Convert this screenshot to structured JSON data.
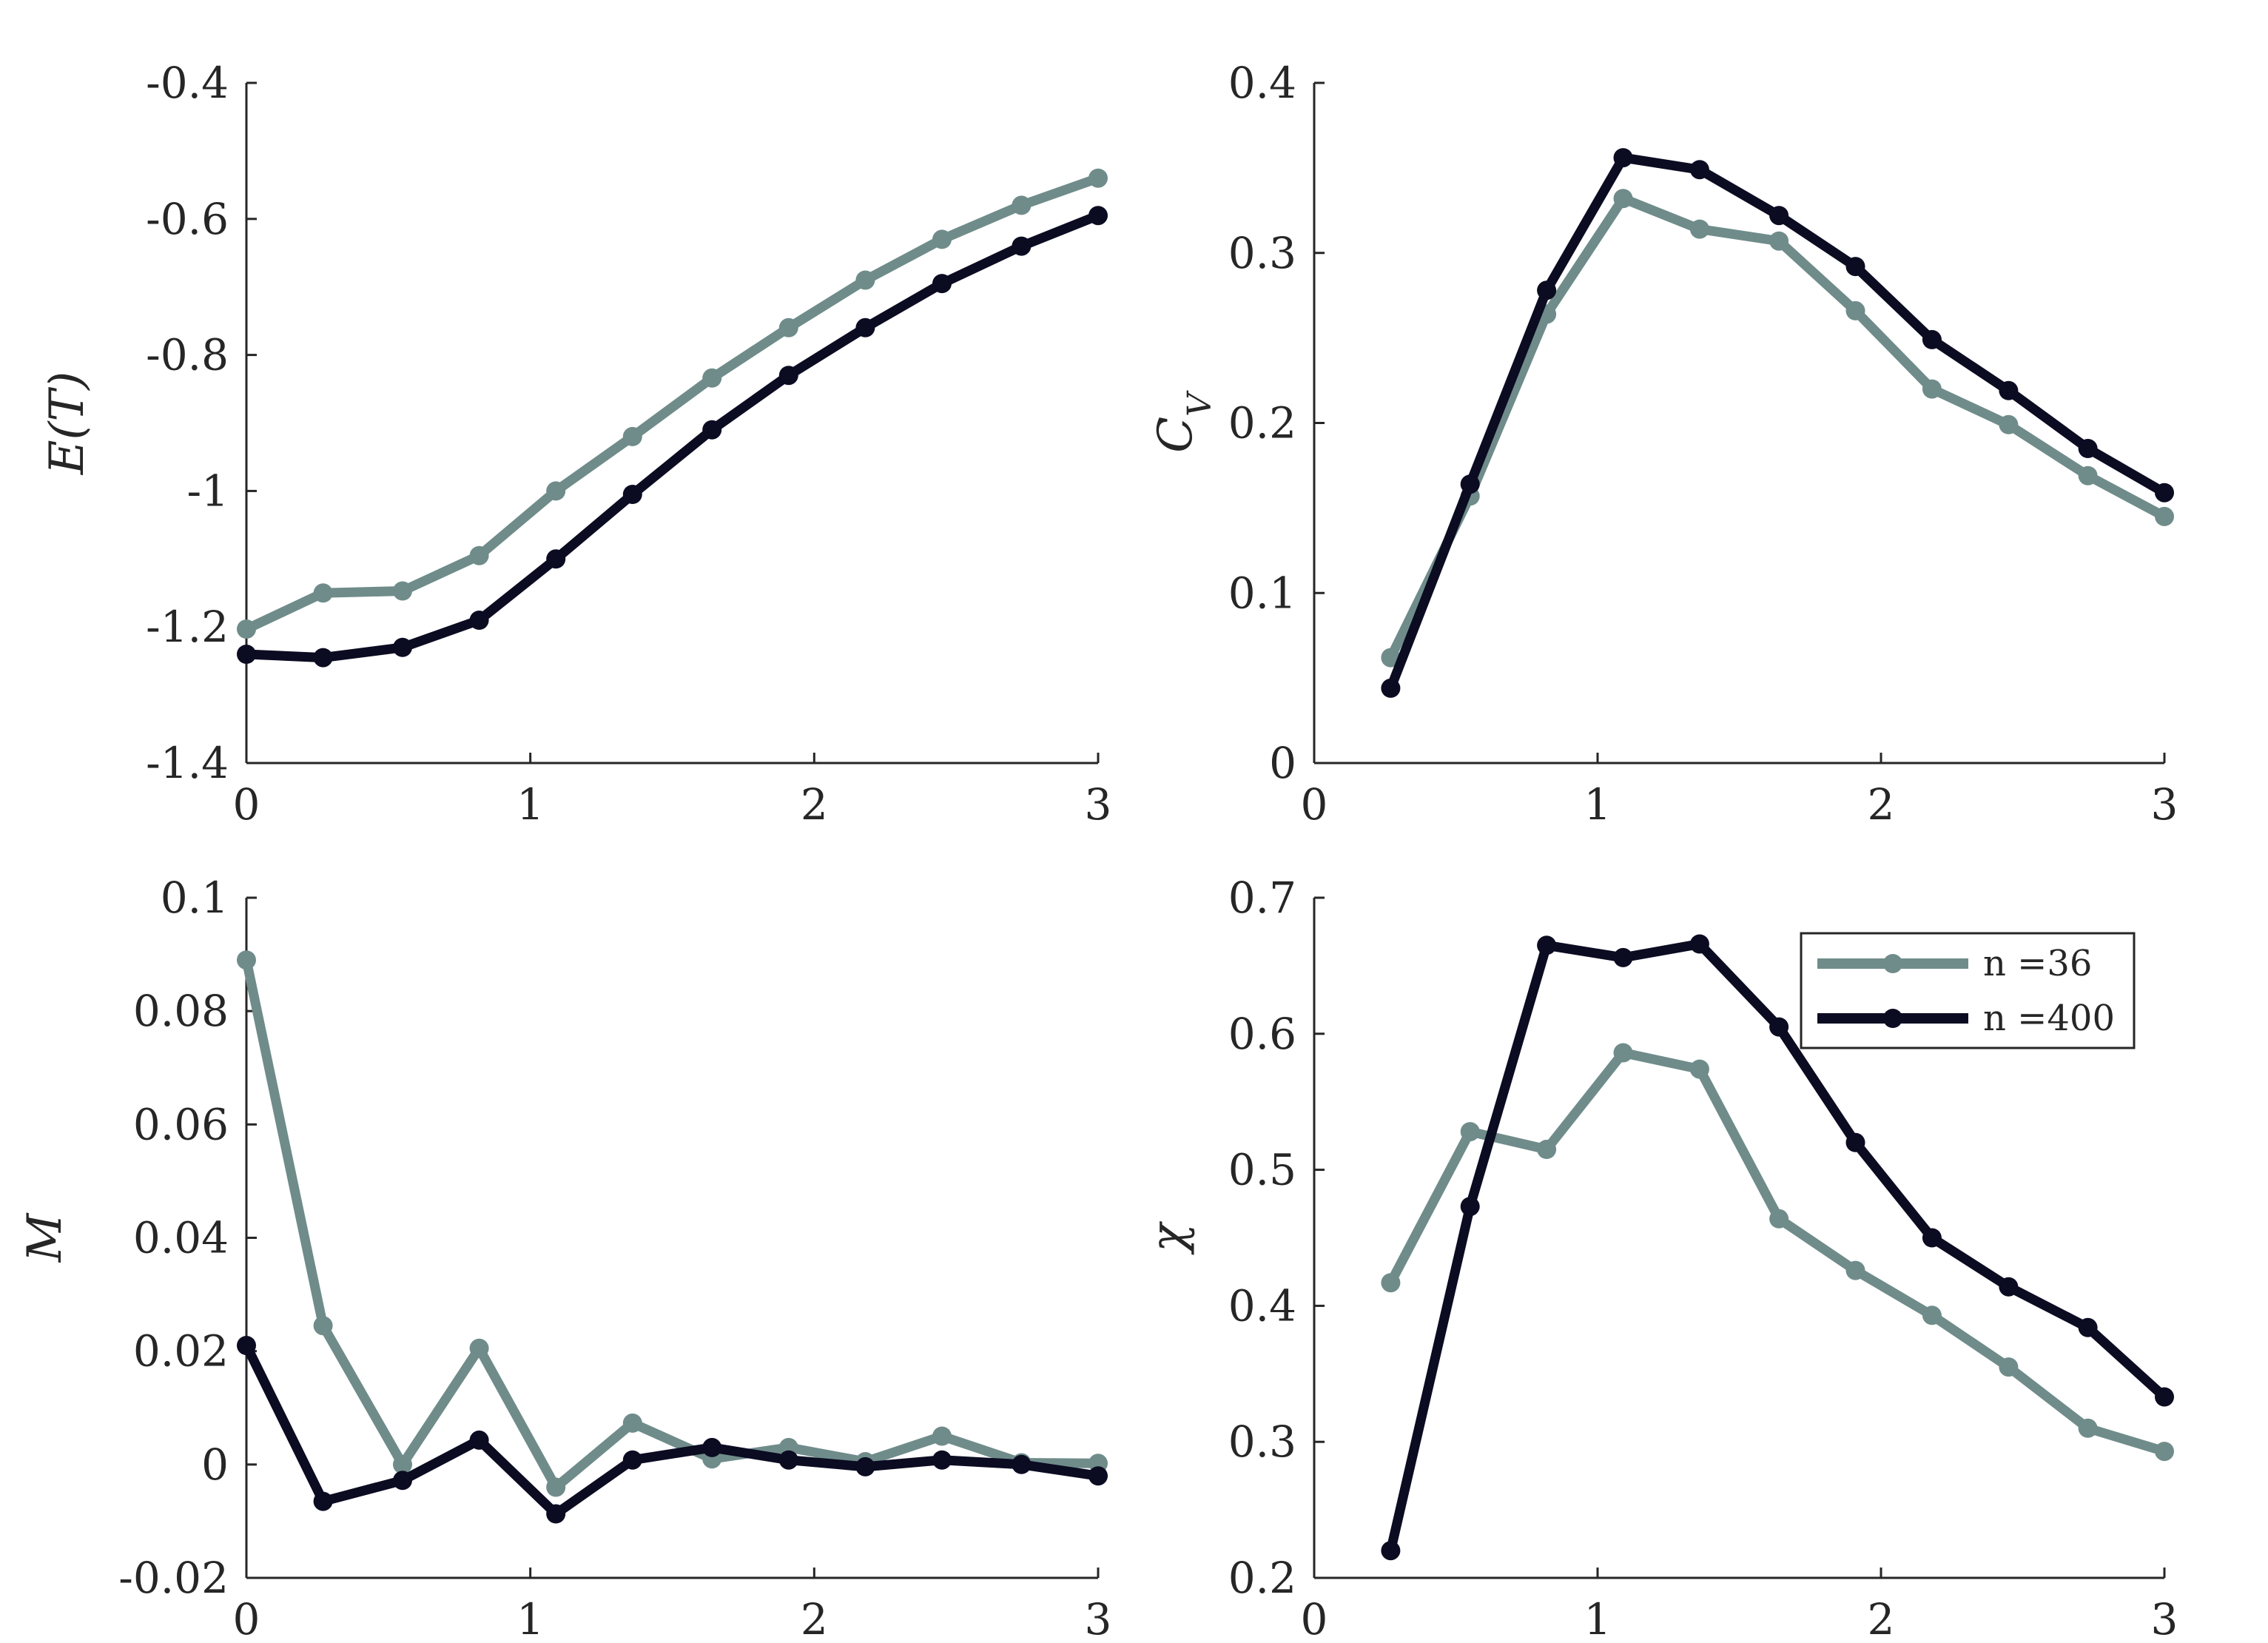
{
  "colors": {
    "n36": "#6f8c8a",
    "n400": "#0b0b22",
    "axis": "#262626"
  },
  "legend": [
    {
      "key": "n36",
      "label": "n =36"
    },
    {
      "key": "n400",
      "label": "n =400"
    }
  ],
  "chart_data": [
    {
      "type": "line",
      "ylabel": "E(T)",
      "xlim": [
        0,
        3
      ],
      "ylim": [
        -1.4,
        -0.4
      ],
      "xticks": [
        0,
        1,
        2,
        3
      ],
      "xtick_labels": [
        "0",
        "1",
        "2",
        "3"
      ],
      "yticks": [
        -1.4,
        -1.2,
        -1,
        -0.8,
        -0.6,
        -0.4
      ],
      "ytick_labels": [
        "-1.4",
        "-1.2",
        "-1",
        "-0.8",
        "-0.6",
        "-0.4"
      ],
      "x": [
        0,
        0.27,
        0.55,
        0.82,
        1.09,
        1.36,
        1.64,
        1.91,
        2.18,
        2.45,
        2.73,
        3.0
      ],
      "series": [
        {
          "key": "n36",
          "name": "n =36",
          "values": [
            -1.203,
            -1.15,
            -1.147,
            -1.095,
            -1.0,
            -0.92,
            -0.834,
            -0.76,
            -0.69,
            -0.63,
            -0.58,
            -0.54
          ]
        },
        {
          "key": "n400",
          "name": "n =400",
          "values": [
            -1.24,
            -1.245,
            -1.23,
            -1.19,
            -1.1,
            -1.005,
            -0.91,
            -0.83,
            -0.76,
            -0.695,
            -0.64,
            -0.595
          ]
        }
      ],
      "grid": false
    },
    {
      "type": "line",
      "ylabel": "C_V",
      "xlim": [
        0,
        3
      ],
      "ylim": [
        0,
        0.4
      ],
      "xticks": [
        0,
        1,
        2,
        3
      ],
      "xtick_labels": [
        "0",
        "1",
        "2",
        "3"
      ],
      "yticks": [
        0,
        0.1,
        0.2,
        0.3,
        0.4
      ],
      "ytick_labels": [
        "0",
        "0.1",
        "0.2",
        "0.3",
        "0.4"
      ],
      "x": [
        0.27,
        0.55,
        0.82,
        1.09,
        1.36,
        1.64,
        1.91,
        2.18,
        2.45,
        2.73,
        3.0
      ],
      "series": [
        {
          "key": "n36",
          "name": "n =36",
          "values": [
            0.062,
            0.157,
            0.264,
            0.332,
            0.314,
            0.307,
            0.266,
            0.22,
            0.199,
            0.169,
            0.145
          ]
        },
        {
          "key": "n400",
          "name": "n =400",
          "values": [
            0.044,
            0.164,
            0.278,
            0.356,
            0.349,
            0.322,
            0.292,
            0.249,
            0.219,
            0.185,
            0.159
          ]
        }
      ],
      "grid": false
    },
    {
      "type": "line",
      "ylabel": "M",
      "xlim": [
        0,
        3
      ],
      "ylim": [
        -0.02,
        0.1
      ],
      "xticks": [
        0,
        1,
        2,
        3
      ],
      "xtick_labels": [
        "0",
        "1",
        "2",
        "3"
      ],
      "yticks": [
        -0.02,
        0,
        0.02,
        0.04,
        0.06,
        0.08,
        0.1
      ],
      "ytick_labels": [
        "-0.02",
        "0",
        "0.02",
        "0.04",
        "0.06",
        "0.08",
        "0.1"
      ],
      "x": [
        0,
        0.27,
        0.55,
        0.82,
        1.09,
        1.36,
        1.64,
        1.91,
        2.18,
        2.45,
        2.73,
        3.0
      ],
      "series": [
        {
          "key": "n36",
          "name": "n =36",
          "values": [
            0.089,
            0.0245,
            0.0,
            0.0205,
            -0.004,
            0.0073,
            0.001,
            0.003,
            0.0005,
            0.005,
            0.0003,
            0.0002
          ]
        },
        {
          "key": "n400",
          "name": "n =400",
          "values": [
            0.021,
            -0.0065,
            -0.0028,
            0.0043,
            -0.0087,
            0.0008,
            0.003,
            0.0008,
            -0.0004,
            0.0008,
            0.0,
            -0.002
          ]
        }
      ],
      "grid": false
    },
    {
      "type": "line",
      "ylabel": "χ",
      "xlim": [
        0,
        3
      ],
      "ylim": [
        0.2,
        0.7
      ],
      "xticks": [
        0,
        1,
        2,
        3
      ],
      "xtick_labels": [
        "0",
        "1",
        "2",
        "3"
      ],
      "yticks": [
        0.2,
        0.3,
        0.4,
        0.5,
        0.6,
        0.7
      ],
      "ytick_labels": [
        "0.2",
        "0.3",
        "0.4",
        "0.5",
        "0.6",
        "0.7"
      ],
      "x": [
        0.27,
        0.55,
        0.82,
        1.09,
        1.36,
        1.64,
        1.91,
        2.18,
        2.45,
        2.73,
        3.0
      ],
      "series": [
        {
          "key": "n36",
          "name": "n =36",
          "values": [
            0.417,
            0.528,
            0.515,
            0.586,
            0.574,
            0.464,
            0.426,
            0.393,
            0.355,
            0.31,
            0.293
          ]
        },
        {
          "key": "n400",
          "name": "n =400",
          "values": [
            0.22,
            0.473,
            0.665,
            0.656,
            0.666,
            0.605,
            0.52,
            0.45,
            0.414,
            0.384,
            0.333
          ]
        }
      ],
      "legend_position": "top-right",
      "grid": false
    }
  ]
}
